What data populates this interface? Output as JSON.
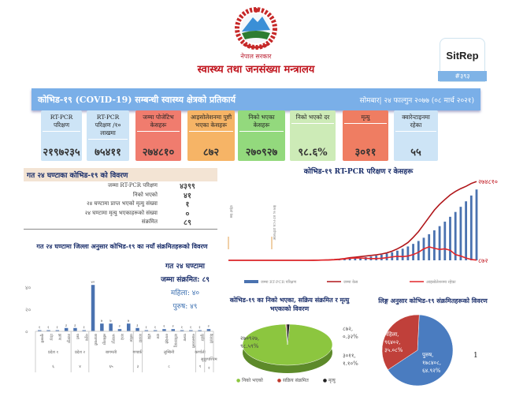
{
  "header": {
    "gov": "नेपाल सरकार",
    "ministry": "स्वास्थ्य तथा जनसंख्या मन्त्रालय",
    "sitrep": "SitRep",
    "sitrep_no": "#३९३"
  },
  "banner": {
    "title": "कोभिड-१९ (COVID-19) सम्बन्धी स्वास्थ्य क्षेत्रको प्रतिकार्य",
    "date": "सोमबार| २४ फाल्गुन २०७७ (०८ मार्च २०२१)"
  },
  "cards": [
    {
      "label": "RT-PCR परिक्षण",
      "value": "२१९७२३५",
      "color": "#cde4f6"
    },
    {
      "label": "RT-PCR परिक्षण /१० लाखमा",
      "value": "७५४११",
      "color": "#cde4f6"
    },
    {
      "label": "जम्मा पोजेटिभ केसहरू",
      "value": "२७४८१०",
      "color": "#f07c6e"
    },
    {
      "label": "आइसोलेशनमा पुष्टी भएका केसहरू",
      "value": "८७२",
      "color": "#f6b466"
    },
    {
      "label": "निको भएका केसहरू",
      "value": "२७०९२७",
      "color": "#93d97d"
    },
    {
      "label": "निको भएको दर",
      "value": "९८.६%",
      "color": "#cdebb7"
    },
    {
      "label": "मृत्यु",
      "value": "३०११",
      "color": "#ef7d62"
    },
    {
      "label": "क्वारेन्टाइनमा रहेका",
      "value": "५५",
      "color": "#cde4f6"
    }
  ],
  "last24": {
    "title": "गत २४ घण्टाका कोभिड-१९ को विवरण",
    "rows": [
      {
        "k": "जम्मा RT-PCR परिक्षण",
        "v": "४३९९"
      },
      {
        "k": "निको भएको",
        "v": "४१"
      },
      {
        "k": "२४ घण्टामा प्राप्त भएको मृत्यु संख्या",
        "v": "१"
      },
      {
        "k": "२४ घण्टामा मृत्यु भएकाहरूको संख्या",
        "v": "०"
      },
      {
        "k": "संक्रमित",
        "v": "८९"
      }
    ]
  },
  "district": {
    "title": "गत २४ घण्टामा जिल्ला अनुसार कोभिड-१९ का नयाँ संक्रमितहरूको विवरण",
    "summary": {
      "l1": "गत २४ घण्टामा",
      "l2": "जम्मा संक्रमित: ८९",
      "female": "महिला: ४०",
      "male": "पुरुष: ४९"
    }
  },
  "chart_data": [
    {
      "type": "bar",
      "title": "गत २४ घण्टामा जिल्ला अनुसार नयाँ संक्रमित",
      "ylim": [
        0,
        50
      ],
      "yticks": [
        "०",
        "२०",
        "४०"
      ],
      "categories": [
        "सुनसरी",
        "मोरङ",
        "झापा",
        "उदयपुर",
        "पर्सा",
        "धनुषा",
        "काठमाडौं",
        "ललितपुर",
        "भक्तपुर",
        "काभ्रे",
        "धादिङ",
        "कास्की",
        "बाँके",
        "दाङ",
        "रुपन्देही",
        "कपिलवस्तु",
        "पाल्पा",
        "नवलपरासी",
        "सुर्खेत",
        "कैलाली"
      ],
      "values": [
        1,
        1,
        1,
        3,
        3,
        1,
        42,
        7,
        7,
        2,
        7,
        3,
        1,
        1,
        2,
        2,
        1,
        1,
        1,
        2
      ],
      "value_labels": [
        "१",
        "१",
        "१",
        "३",
        "३",
        "१",
        "४२",
        "७",
        "७",
        "२",
        "७",
        "३",
        "१",
        "१",
        "२",
        "२",
        "१",
        "१",
        "१",
        "२"
      ],
      "groups": [
        {
          "name": "प्रदेश १",
          "count": 4,
          "total": "६"
        },
        {
          "name": "प्रदेश २",
          "count": 2,
          "total": "४"
        },
        {
          "name": "बागमती",
          "count": 5,
          "total": "६५"
        },
        {
          "name": "गण्डकी",
          "count": 1,
          "total": "३"
        },
        {
          "name": "लुम्बिनी",
          "count": 6,
          "total": "८"
        },
        {
          "name": "कर्णाली",
          "count": 1,
          "total": "१"
        },
        {
          "name": "सुदूरपश्चिम",
          "count": 1,
          "total": "२"
        }
      ]
    },
    {
      "type": "bar+line",
      "title": "कोभिड-१९ RT-PCR परिक्षण र केसहरू",
      "series": [
        {
          "name": "जम्मा RT-PCR परिक्षण",
          "type": "bar",
          "color": "#4a72b0",
          "values_thousands": [
            0,
            0,
            0,
            0,
            0,
            0,
            0,
            0,
            0,
            0,
            0,
            0,
            0,
            0,
            0,
            0,
            3,
            6,
            10,
            15,
            22,
            30,
            40,
            52,
            66,
            82,
            100,
            120,
            145,
            175,
            210,
            250,
            300,
            360,
            430,
            510,
            600,
            700,
            810,
            930,
            1060,
            1200,
            1350,
            1500,
            1660,
            1830,
            2010,
            2197
          ]
        },
        {
          "name": "जम्मा केस",
          "type": "line",
          "color": "#b0161a",
          "values_thousands": [
            0,
            0,
            0,
            0,
            0,
            0,
            0,
            0,
            0,
            0,
            0,
            0,
            0,
            0,
            0,
            0,
            0.3,
            0.6,
            1,
            1.5,
            2.5,
            4,
            6,
            9,
            11,
            13,
            15,
            17,
            19,
            22,
            26,
            32,
            40,
            50,
            62,
            80,
            100,
            125,
            150,
            175,
            195,
            212,
            228,
            240,
            250,
            258,
            268,
            274.81
          ]
        },
        {
          "name": "आइसोलेशनमा रहेका",
          "type": "line",
          "color": "#e2262a",
          "values_thousands": [
            0,
            0,
            0,
            0,
            0,
            0,
            0,
            0,
            0,
            0,
            0,
            0,
            0,
            0,
            0,
            0,
            0.3,
            0.5,
            0.8,
            1.2,
            2,
            3,
            5,
            7,
            8,
            8,
            7,
            6,
            6,
            7,
            9,
            12,
            14,
            13,
            15,
            20,
            28,
            40,
            47,
            42,
            38,
            40,
            35,
            20,
            15,
            8,
            3,
            0.87
          ]
        }
      ],
      "end_labels": {
        "cases": "२७४८१०",
        "active": "८७२"
      },
      "annotations": [
        "पहिलो केस",
        "केस १६ RT-PCR प्रयोगशाला"
      ]
    },
    {
      "type": "pie",
      "title": "कोभिड-१९ का निको भएका, सक्रिय संक्रमित र मृत्यु भएकाको विवरण",
      "slices": [
        {
          "name": "निको भएको",
          "value": 270927,
          "label": "२७०९२७, ९८.५९%",
          "color": "#8cc63f"
        },
        {
          "name": "सक्रिय संक्रमित",
          "value": 872,
          "label": "८७२, ०.३२%",
          "color": "#c0392b"
        },
        {
          "name": "मृत्यु",
          "value": 3011,
          "label": "३०११, १.१०%",
          "color": "#222222"
        }
      ]
    },
    {
      "type": "pie",
      "title": "लिङ्ग अनुसार कोभिड-१९ संक्रमितहरूको विवरण",
      "slices": [
        {
          "name": "पुरुष",
          "value": 178408,
          "label": "पुरुष, १७८४०८, ६४.९२%",
          "color": "#4a7cc0"
        },
        {
          "name": "महिला",
          "value": 96402,
          "label": "महिला, ९६४०२, ३५.०८%",
          "color": "#c0403a"
        }
      ]
    }
  ],
  "page_number": "1"
}
